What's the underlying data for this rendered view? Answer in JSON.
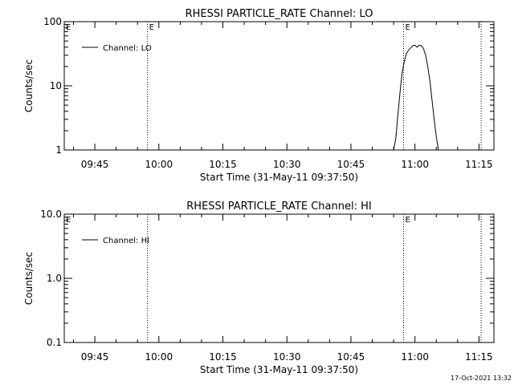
{
  "chart_data": [
    {
      "type": "line",
      "title": "RHESSI PARTICLE_RATE Channel: LO",
      "xlabel": "Start Time (31-May-11 09:37:50)",
      "ylabel": "Counts/sec",
      "yscale": "log",
      "xlim": [
        "09:37:50",
        "11:18:30"
      ],
      "ylim": [
        1,
        100
      ],
      "x_ticks": [
        "09:45",
        "10:00",
        "10:15",
        "10:30",
        "10:45",
        "11:00",
        "11:15"
      ],
      "y_ticks": [
        {
          "value": 1,
          "label": "1"
        },
        {
          "value": 10,
          "label": "10"
        },
        {
          "value": 100,
          "label": "100"
        }
      ],
      "legend": {
        "position": "top-left",
        "label": "Channel: LO"
      },
      "event_lines": [
        {
          "time": "09:57:20",
          "label": "E",
          "style": "dotted"
        },
        {
          "time": "10:57:20",
          "label": "E",
          "style": "dotted"
        },
        {
          "time": "11:15:30",
          "label": "",
          "style": "dotted"
        }
      ],
      "corner_label": "E",
      "series": [
        {
          "x": [
            "10:55:00",
            "10:55:30",
            "10:56:00",
            "10:56:30",
            "10:57:00",
            "10:57:30",
            "10:58:00",
            "10:58:30",
            "10:59:00",
            "10:59:30",
            "11:00:00",
            "11:00:30",
            "11:01:00",
            "11:01:30",
            "11:02:00",
            "11:02:30",
            "11:03:00",
            "11:03:30",
            "11:04:00",
            "11:04:30",
            "11:05:00",
            "11:05:30"
          ],
          "values": [
            1.0,
            1.5,
            3.5,
            8,
            16,
            24,
            32,
            36,
            39,
            42,
            43,
            40,
            43,
            42,
            38,
            30,
            20,
            12,
            6,
            3,
            1.6,
            1.0
          ]
        }
      ]
    },
    {
      "type": "line",
      "title": "RHESSI PARTICLE_RATE Channel: HI",
      "xlabel": "Start Time (31-May-11 09:37:50)",
      "ylabel": "Counts/sec",
      "yscale": "log",
      "xlim": [
        "09:37:50",
        "11:18:30"
      ],
      "ylim": [
        0.1,
        10
      ],
      "x_ticks": [
        "09:45",
        "10:00",
        "10:15",
        "10:30",
        "10:45",
        "11:00",
        "11:15"
      ],
      "y_ticks": [
        {
          "value": 0.1,
          "label": "0.1"
        },
        {
          "value": 1,
          "label": "1.0"
        },
        {
          "value": 10,
          "label": "10.0"
        }
      ],
      "legend": {
        "position": "top-left",
        "label": "Channel: HI"
      },
      "event_lines": [
        {
          "time": "09:57:20",
          "label": "",
          "style": "dotted"
        },
        {
          "time": "10:57:20",
          "label": "E",
          "style": "dotted"
        },
        {
          "time": "11:15:30",
          "label": "",
          "style": "dotted"
        }
      ],
      "corner_label": "E",
      "series": [
        {
          "x": [],
          "values": []
        }
      ]
    }
  ],
  "footer": {
    "timestamp": "17-Oct-2021 13:32"
  }
}
